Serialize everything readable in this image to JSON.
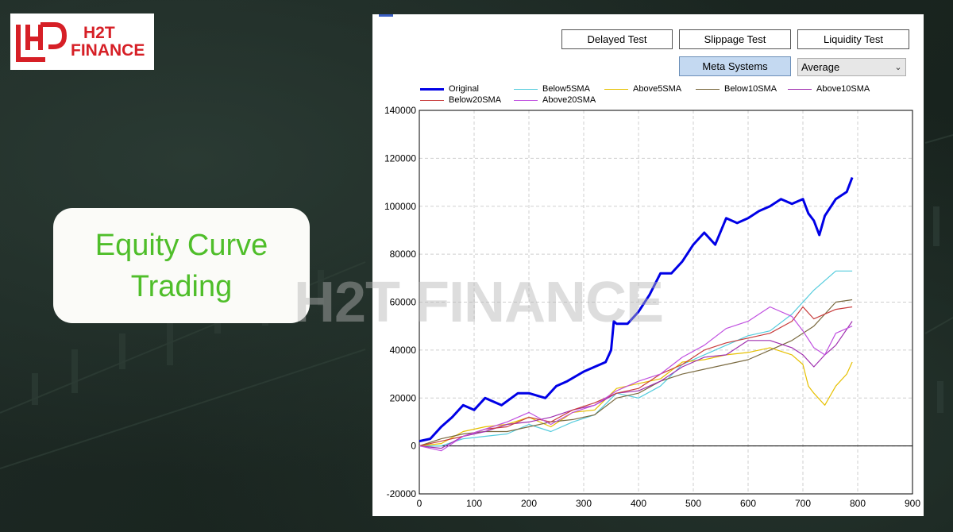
{
  "brand": {
    "line1": "H2T",
    "line2": "FINANCE",
    "color": "#d61f26"
  },
  "title": {
    "line1": "Equity Curve",
    "line2": "Trading",
    "color": "#4fbe2a"
  },
  "watermark": "H2T FINANCE",
  "toolbar": {
    "delayed_test": "Delayed Test",
    "slippage_test": "Slippage Test",
    "liquidity_test": "Liquidity Test",
    "meta_systems": "Meta Systems",
    "dropdown_value": "Average"
  },
  "chart_data": {
    "type": "line",
    "xlim": [
      0,
      900
    ],
    "ylim": [
      -20000,
      140000
    ],
    "xticks": [
      0,
      100,
      200,
      300,
      400,
      500,
      600,
      700,
      800,
      900
    ],
    "yticks": [
      -20000,
      0,
      20000,
      40000,
      60000,
      80000,
      100000,
      120000,
      140000
    ],
    "grid": true,
    "legend_position": "top",
    "series": [
      {
        "name": "Original",
        "color": "#0000e6",
        "x": [
          0,
          20,
          40,
          60,
          80,
          100,
          120,
          150,
          180,
          200,
          230,
          250,
          270,
          300,
          320,
          340,
          350,
          355,
          360,
          380,
          400,
          420,
          440,
          460,
          480,
          500,
          520,
          540,
          560,
          580,
          600,
          620,
          640,
          660,
          680,
          700,
          710,
          720,
          730,
          740,
          760,
          780,
          790
        ],
        "y": [
          2000,
          3000,
          8000,
          12000,
          17000,
          15000,
          20000,
          17000,
          22000,
          22000,
          20000,
          25000,
          27000,
          31000,
          33000,
          35000,
          40000,
          52000,
          51000,
          51000,
          56000,
          63000,
          72000,
          72000,
          77000,
          84000,
          89000,
          84000,
          95000,
          93000,
          95000,
          98000,
          100000,
          103000,
          101000,
          103000,
          97000,
          94000,
          88000,
          96000,
          103000,
          106000,
          112000
        ]
      },
      {
        "name": "Below5SMA",
        "color": "#55ccdd",
        "x": [
          0,
          40,
          80,
          120,
          160,
          200,
          240,
          280,
          320,
          360,
          400,
          440,
          480,
          520,
          560,
          600,
          640,
          680,
          720,
          760,
          790
        ],
        "y": [
          0,
          0,
          3000,
          4000,
          5000,
          9000,
          6000,
          10000,
          13000,
          22000,
          20000,
          25000,
          34000,
          38000,
          42000,
          46000,
          48000,
          55000,
          65000,
          73000,
          73000
        ]
      },
      {
        "name": "Above5SMA",
        "color": "#e6c000",
        "x": [
          0,
          40,
          80,
          120,
          160,
          200,
          240,
          280,
          320,
          360,
          400,
          440,
          480,
          520,
          560,
          600,
          640,
          680,
          700,
          710,
          720,
          740,
          760,
          780,
          790
        ],
        "y": [
          0,
          1000,
          6000,
          8000,
          9000,
          12000,
          8000,
          14000,
          15000,
          24000,
          26000,
          28000,
          35000,
          36000,
          38000,
          39000,
          41000,
          38000,
          34000,
          25000,
          22000,
          17000,
          25000,
          30000,
          35000
        ]
      },
      {
        "name": "Below10SMA",
        "color": "#7a6a40",
        "x": [
          0,
          40,
          80,
          120,
          160,
          200,
          240,
          280,
          320,
          360,
          400,
          440,
          480,
          520,
          560,
          600,
          640,
          680,
          720,
          740,
          760,
          790
        ],
        "y": [
          0,
          3000,
          5000,
          6000,
          6000,
          8000,
          10000,
          11000,
          13000,
          20000,
          22000,
          27000,
          30000,
          32000,
          34000,
          36000,
          40000,
          44000,
          50000,
          55000,
          60000,
          61000
        ]
      },
      {
        "name": "Above10SMA",
        "color": "#a030b0",
        "x": [
          0,
          40,
          80,
          120,
          160,
          200,
          240,
          280,
          320,
          360,
          400,
          440,
          480,
          520,
          560,
          600,
          640,
          680,
          700,
          720,
          740,
          760,
          790
        ],
        "y": [
          0,
          -1000,
          4000,
          6000,
          9000,
          10000,
          12000,
          15000,
          17000,
          22000,
          23000,
          27000,
          33000,
          37000,
          38000,
          44000,
          44000,
          41000,
          38000,
          33000,
          38000,
          42000,
          52000
        ]
      },
      {
        "name": "Below20SMA",
        "color": "#c83c3c",
        "x": [
          0,
          40,
          80,
          120,
          160,
          200,
          240,
          280,
          320,
          360,
          400,
          440,
          480,
          520,
          560,
          600,
          640,
          680,
          700,
          720,
          740,
          760,
          790
        ],
        "y": [
          0,
          2000,
          4000,
          7000,
          8000,
          12000,
          10000,
          15000,
          18000,
          22000,
          24000,
          30000,
          34000,
          40000,
          43000,
          45000,
          47000,
          52000,
          58000,
          53000,
          55000,
          57000,
          58000
        ]
      },
      {
        "name": "Above20SMA",
        "color": "#c050e0",
        "x": [
          0,
          40,
          80,
          120,
          160,
          200,
          240,
          280,
          320,
          360,
          400,
          440,
          480,
          520,
          560,
          600,
          640,
          680,
          700,
          720,
          740,
          760,
          790
        ],
        "y": [
          0,
          -2000,
          4000,
          7000,
          10000,
          14000,
          9000,
          14000,
          17000,
          23000,
          27000,
          30000,
          37000,
          42000,
          49000,
          52000,
          58000,
          54000,
          48000,
          41000,
          38000,
          47000,
          50000
        ]
      }
    ]
  }
}
